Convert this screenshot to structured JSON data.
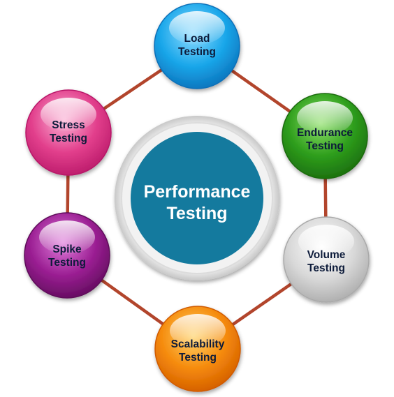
{
  "center": {
    "line1": "Performance",
    "line2": "Testing",
    "color": "#147a9e"
  },
  "nodes": [
    {
      "id": "load",
      "line1": "Load",
      "line2": "Testing",
      "color": "#1aa7ea",
      "light": "#8fdcff",
      "dark": "#0a6fb8",
      "text_color": "#0d1b3a"
    },
    {
      "id": "endurance",
      "line1": "Endurance",
      "line2": "Testing",
      "color": "#2e9e1c",
      "light": "#8fe06a",
      "dark": "#1a6a0d",
      "text_color": "#0d1b3a"
    },
    {
      "id": "volume",
      "line1": "Volume",
      "line2": "Testing",
      "color": "#d8d8d8",
      "light": "#ffffff",
      "dark": "#a9a9a9",
      "text_color": "#0d1b3a"
    },
    {
      "id": "scalability",
      "line1": "Scalability",
      "line2": "Testing",
      "color": "#f58a0b",
      "light": "#ffd36b",
      "dark": "#d05a00",
      "text_color": "#0d1b3a"
    },
    {
      "id": "spike",
      "line1": "Spike",
      "line2": "Testing",
      "color": "#9b1f93",
      "light": "#e07ddc",
      "dark": "#5e0a5a",
      "text_color": "#0d1b3a"
    },
    {
      "id": "stress",
      "line1": "Stress",
      "line2": "Testing",
      "color": "#e23f8c",
      "light": "#fbb3d6",
      "dark": "#b81868",
      "text_color": "#0d1b3a"
    }
  ],
  "connector_color": "#b2452c"
}
